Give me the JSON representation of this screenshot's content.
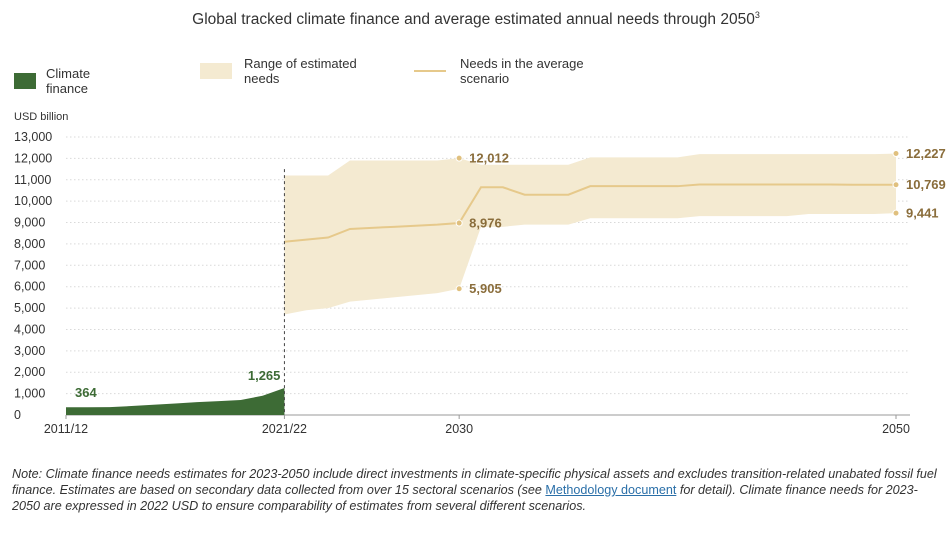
{
  "title": "Global tracked climate finance and average estimated annual needs through 2050",
  "title_sup": "3",
  "legend": {
    "finance": "Climate finance",
    "range": "Range of estimated needs",
    "needs": "Needs in the average scenario"
  },
  "colors": {
    "finance": "#3d6b35",
    "range": "#f4ead1",
    "needs": "#e6c98b",
    "label_finance": "#3d6b35",
    "label_needs": "#8a6d3b"
  },
  "chart_data": {
    "type": "area",
    "ylabel": "USD billion",
    "ylim": [
      0,
      13000
    ],
    "yticks": [
      0,
      1000,
      2000,
      3000,
      4000,
      5000,
      6000,
      7000,
      8000,
      9000,
      10000,
      11000,
      12000,
      13000
    ],
    "ytick_labels": [
      "0",
      "1,000",
      "2,000",
      "3,000",
      "4,000",
      "5,000",
      "6,000",
      "7,000",
      "8,000",
      "9,000",
      "10,000",
      "11,000",
      "12,000",
      "13,000"
    ],
    "xticks": [
      {
        "label": "2011/12",
        "year": 2012
      },
      {
        "label": "2021/22",
        "year": 2022
      },
      {
        "label": "2030",
        "year": 2030
      },
      {
        "label": "2050",
        "year": 2050
      }
    ],
    "grid": "horizontal dotted",
    "finance": {
      "name": "Climate finance",
      "x": [
        2012,
        2013,
        2014,
        2015,
        2016,
        2017,
        2018,
        2019,
        2020,
        2021,
        2022
      ],
      "y": [
        364,
        360,
        370,
        420,
        480,
        540,
        600,
        650,
        700,
        900,
        1265
      ]
    },
    "needs_range": {
      "name": "Range of estimated needs",
      "x": [
        2022,
        2023,
        2024,
        2025,
        2026,
        2027,
        2028,
        2029,
        2030,
        2031,
        2032,
        2033,
        2034,
        2035,
        2036,
        2037,
        2038,
        2039,
        2040,
        2041,
        2042,
        2043,
        2044,
        2045,
        2046,
        2047,
        2048,
        2049,
        2050
      ],
      "low": [
        4700,
        4900,
        5000,
        5300,
        5400,
        5500,
        5600,
        5700,
        5905,
        8800,
        8800,
        8900,
        8900,
        8900,
        9200,
        9200,
        9200,
        9200,
        9200,
        9300,
        9300,
        9300,
        9300,
        9300,
        9400,
        9400,
        9400,
        9400,
        9441
      ],
      "high": [
        11200,
        11200,
        11200,
        11900,
        11900,
        11900,
        11900,
        11900,
        12012,
        11700,
        11700,
        11700,
        11700,
        11700,
        12050,
        12050,
        12050,
        12050,
        12050,
        12200,
        12200,
        12200,
        12200,
        12200,
        12200,
        12200,
        12200,
        12200,
        12227
      ]
    },
    "needs_avg": {
      "name": "Needs in the average scenario",
      "x": [
        2022,
        2023,
        2024,
        2025,
        2026,
        2027,
        2028,
        2029,
        2030,
        2031,
        2032,
        2033,
        2034,
        2035,
        2036,
        2037,
        2038,
        2039,
        2040,
        2041,
        2042,
        2043,
        2044,
        2045,
        2046,
        2047,
        2048,
        2049,
        2050
      ],
      "y": [
        8100,
        8200,
        8300,
        8700,
        8750,
        8800,
        8850,
        8900,
        8976,
        10650,
        10650,
        10300,
        10300,
        10300,
        10700,
        10700,
        10700,
        10700,
        10700,
        10780,
        10780,
        10780,
        10780,
        10780,
        10780,
        10780,
        10769,
        10769,
        10769
      ]
    },
    "annotations": {
      "finance": [
        {
          "x": 2012,
          "y": 364,
          "label": "364"
        },
        {
          "x": 2022,
          "y": 1265,
          "label": "1,265"
        }
      ],
      "needs": [
        {
          "x": 2030,
          "y": 12012,
          "label": "12,012"
        },
        {
          "x": 2030,
          "y": 8976,
          "label": "8,976"
        },
        {
          "x": 2030,
          "y": 5905,
          "label": "5,905"
        },
        {
          "x": 2050,
          "y": 12227,
          "label": "12,227"
        },
        {
          "x": 2050,
          "y": 10769,
          "label": "10,769"
        },
        {
          "x": 2050,
          "y": 9441,
          "label": "9,441"
        }
      ]
    }
  },
  "note": {
    "prefix": "Note:",
    "part1": " Climate finance needs estimates for 2023-2050 include direct investments in climate-specific physical assets and excludes transition-related unabated fossil fuel finance. Estimates are based on secondary data collected from over 15 sectoral scenarios (see ",
    "link": "Methodology document",
    "part2": " for detail). Climate finance needs for 2023-2050 are expressed in 2022 USD to ensure comparability of estimates from several different scenarios."
  }
}
